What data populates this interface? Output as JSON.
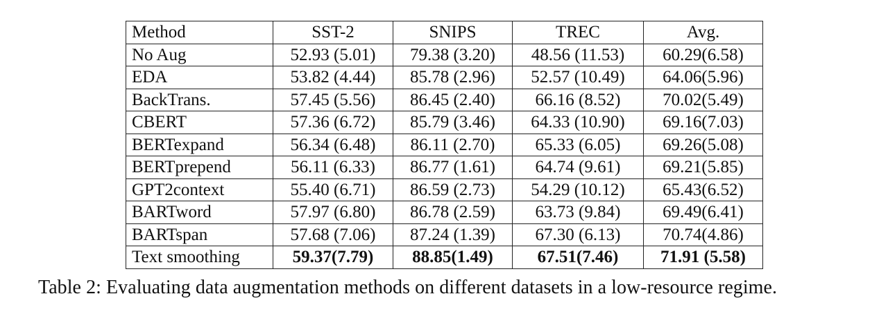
{
  "table": {
    "headers": [
      "Method",
      "SST-2",
      "SNIPS",
      "TREC",
      "Avg."
    ],
    "rows": [
      {
        "method": "No Aug",
        "sst2": "52.93 (5.01)",
        "snips": "79.38 (3.20)",
        "trec": "48.56 (11.53)",
        "avg": "60.29(6.58)"
      },
      {
        "method": "EDA",
        "sst2": "53.82 (4.44)",
        "snips": "85.78 (2.96)",
        "trec": "52.57 (10.49)",
        "avg": "64.06(5.96)"
      },
      {
        "method": "BackTrans.",
        "sst2": "57.45 (5.56)",
        "snips": "86.45 (2.40)",
        "trec": "66.16 (8.52)",
        "avg": "70.02(5.49)"
      },
      {
        "method": "CBERT",
        "sst2": "57.36 (6.72)",
        "snips": "85.79 (3.46)",
        "trec": "64.33 (10.90)",
        "avg": "69.16(7.03)"
      },
      {
        "method": "BERTexpand",
        "sst2": "56.34 (6.48)",
        "snips": "86.11 (2.70)",
        "trec": "65.33 (6.05)",
        "avg": "69.26(5.08)"
      },
      {
        "method": "BERTprepend",
        "sst2": "56.11 (6.33)",
        "snips": "86.77 (1.61)",
        "trec": "64.74 (9.61)",
        "avg": "69.21(5.85)"
      },
      {
        "method": "GPT2context",
        "sst2": "55.40 (6.71)",
        "snips": "86.59 (2.73)",
        "trec": "54.29 (10.12)",
        "avg": "65.43(6.52)"
      },
      {
        "method": "BARTword",
        "sst2": "57.97 (6.80)",
        "snips": "86.78 (2.59)",
        "trec": "63.73 (9.84)",
        "avg": "69.49(6.41)"
      },
      {
        "method": "BARTspan",
        "sst2": "57.68 (7.06)",
        "snips": "87.24 (1.39)",
        "trec": "67.30 (6.13)",
        "avg": "70.74(4.86)"
      },
      {
        "method": "Text smoothing",
        "sst2": "59.37(7.79)",
        "snips": "88.85(1.49)",
        "trec": "67.51(7.46)",
        "avg": "71.91 (5.58)",
        "bold": true
      }
    ]
  },
  "caption": "Table 2: Evaluating data augmentation methods on different datasets in a low-resource regime."
}
